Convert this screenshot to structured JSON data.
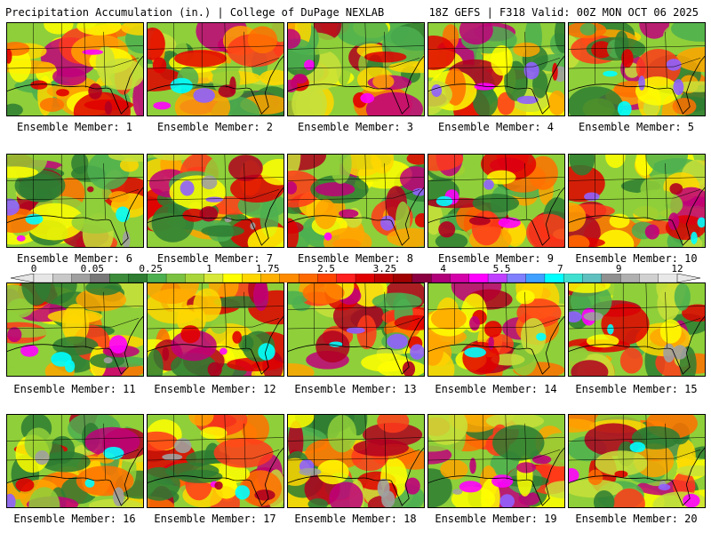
{
  "header": {
    "left_title": "Precipitation Accumulation (in.) | College of DuPage NEXLAB",
    "right_title": "18Z GEFS | F318 Valid: 00Z MON OCT 06 2025"
  },
  "members": [
    {
      "label": "Ensemble Member: 1"
    },
    {
      "label": "Ensemble Member: 2"
    },
    {
      "label": "Ensemble Member: 3"
    },
    {
      "label": "Ensemble Member: 4"
    },
    {
      "label": "Ensemble Member: 5"
    },
    {
      "label": "Ensemble Member: 6"
    },
    {
      "label": "Ensemble Member: 7"
    },
    {
      "label": "Ensemble Member: 8"
    },
    {
      "label": "Ensemble Member: 9"
    },
    {
      "label": "Ensemble Member: 10"
    },
    {
      "label": "Ensemble Member: 11"
    },
    {
      "label": "Ensemble Member: 12"
    },
    {
      "label": "Ensemble Member: 13"
    },
    {
      "label": "Ensemble Member: 14"
    },
    {
      "label": "Ensemble Member: 15"
    },
    {
      "label": "Ensemble Member: 16"
    },
    {
      "label": "Ensemble Member: 17"
    },
    {
      "label": "Ensemble Member: 18"
    },
    {
      "label": "Ensemble Member: 19"
    },
    {
      "label": "Ensemble Member: 20"
    }
  ],
  "colorbar": {
    "tick_labels": [
      "0",
      "0.05",
      "0.25",
      "1",
      "1.75",
      "2.5",
      "3.25",
      "4",
      "5.5",
      "7",
      "9",
      "12"
    ],
    "colors": [
      "#e6e6e6",
      "#c8c8c8",
      "#a0a0a0",
      "#787878",
      "#3c8c3c",
      "#2e7d32",
      "#4caf50",
      "#7cc242",
      "#a8d63a",
      "#d8e83a",
      "#ffff00",
      "#ffd700",
      "#ffb000",
      "#ff8c00",
      "#ff6a00",
      "#ff4500",
      "#ff2020",
      "#e00000",
      "#c00000",
      "#a00000",
      "#8b0040",
      "#b0007a",
      "#d400aa",
      "#ff00ff",
      "#c040ff",
      "#8080ff",
      "#40a0ff",
      "#00ffff",
      "#40e0d0",
      "#60c0c0",
      "#909090",
      "#b0b0b0",
      "#d0d0d0",
      "#e8e8e8"
    ]
  }
}
